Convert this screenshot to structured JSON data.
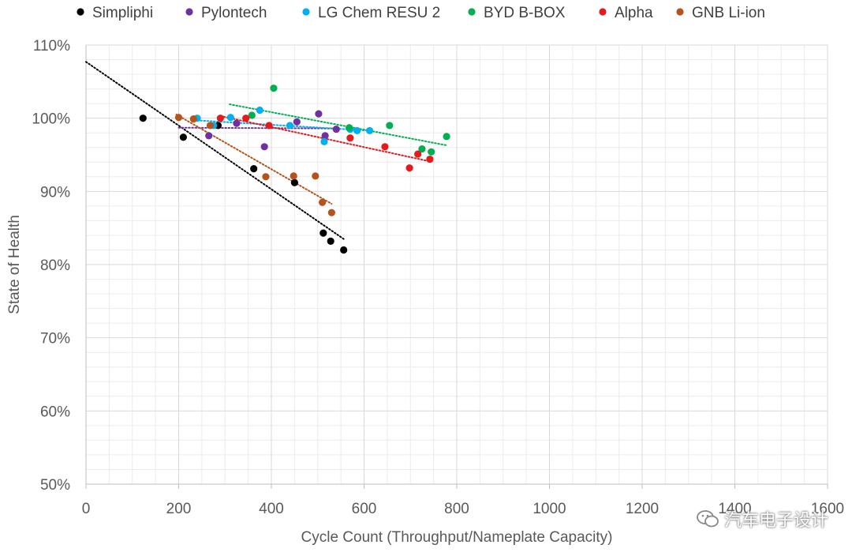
{
  "chart_data": {
    "type": "scatter",
    "title": "",
    "xlabel": "Cycle Count (Throughput/Nameplate  Capacity)",
    "ylabel": "State of Health",
    "xlim": [
      0,
      1600
    ],
    "ylim": [
      0.5,
      1.1
    ],
    "x_ticks": [
      0,
      200,
      400,
      600,
      800,
      1000,
      1200,
      1400,
      1600
    ],
    "y_ticks": [
      0.5,
      0.6,
      0.7,
      0.8,
      0.9,
      1.0,
      1.1
    ],
    "x_tick_labels": [
      "0",
      "200",
      "400",
      "600",
      "800",
      "1000",
      "1200",
      "1400",
      "1600"
    ],
    "y_tick_labels": [
      "50%",
      "60%",
      "70%",
      "80%",
      "90%",
      "100%",
      "110%"
    ],
    "grid": true,
    "legend_position": "top",
    "series": [
      {
        "name": "Simpliphi",
        "color": "#000000",
        "points": [
          [
            123,
            1.0
          ],
          [
            210,
            0.974
          ],
          [
            285,
            0.99
          ],
          [
            362,
            0.931
          ],
          [
            450,
            0.912
          ],
          [
            512,
            0.843
          ],
          [
            528,
            0.832
          ],
          [
            556,
            0.82
          ]
        ],
        "trendline": [
          [
            0,
            1.077
          ],
          [
            556,
            0.835
          ]
        ]
      },
      {
        "name": "Pylontech",
        "color": "#7030a0",
        "points": [
          [
            265,
            0.976
          ],
          [
            325,
            0.993
          ],
          [
            385,
            0.961
          ],
          [
            455,
            0.995
          ],
          [
            502,
            1.006
          ],
          [
            516,
            0.976
          ],
          [
            540,
            0.985
          ]
        ],
        "trendline": [
          [
            200,
            0.987
          ],
          [
            540,
            0.986
          ]
        ]
      },
      {
        "name": "LG Chem RESU 2",
        "color": "#00b0f0",
        "points": [
          [
            240,
            1.0
          ],
          [
            275,
            0.99
          ],
          [
            312,
            1.001
          ],
          [
            375,
            1.011
          ],
          [
            440,
            0.99
          ],
          [
            514,
            0.968
          ],
          [
            570,
            0.985
          ],
          [
            585,
            0.983
          ],
          [
            612,
            0.983
          ]
        ],
        "trendline": [
          [
            240,
            0.997
          ],
          [
            612,
            0.983
          ]
        ]
      },
      {
        "name": "BYD B-BOX",
        "color": "#00b050",
        "points": [
          [
            358,
            1.004
          ],
          [
            405,
            1.041
          ],
          [
            568,
            0.987
          ],
          [
            655,
            0.99
          ],
          [
            725,
            0.958
          ],
          [
            745,
            0.954
          ],
          [
            778,
            0.975
          ]
        ],
        "trendline": [
          [
            310,
            1.019
          ],
          [
            778,
            0.963
          ]
        ]
      },
      {
        "name": "Alpha",
        "color": "#e41a1c",
        "points": [
          [
            290,
            1.0
          ],
          [
            345,
            1.0
          ],
          [
            395,
            0.99
          ],
          [
            570,
            0.973
          ],
          [
            645,
            0.961
          ],
          [
            698,
            0.932
          ],
          [
            716,
            0.951
          ],
          [
            742,
            0.944
          ]
        ],
        "trendline": [
          [
            290,
            1.003
          ],
          [
            742,
            0.941
          ]
        ]
      },
      {
        "name": "GNB Li-ion",
        "color": "#b5531c",
        "points": [
          [
            200,
            1.001
          ],
          [
            232,
            0.999
          ],
          [
            268,
            0.99
          ],
          [
            388,
            0.92
          ],
          [
            448,
            0.921
          ],
          [
            495,
            0.921
          ],
          [
            510,
            0.885
          ],
          [
            530,
            0.871
          ]
        ],
        "trendline": [
          [
            195,
            1.005
          ],
          [
            530,
            0.883
          ]
        ]
      }
    ]
  },
  "watermark": {
    "icon": "wechat-icon",
    "text": "汽车电子设计"
  }
}
